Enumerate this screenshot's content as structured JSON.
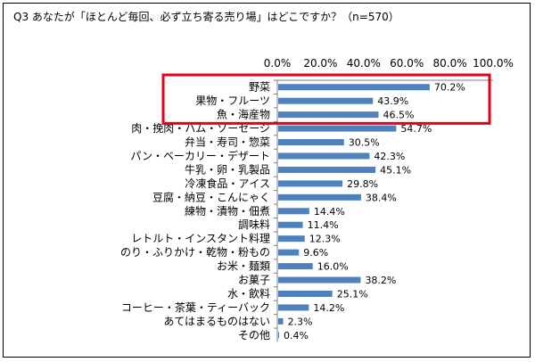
{
  "title": "Q3 あなたが「ほとんど毎回、必ず立ち寄る売り場」はどこですか？（n=570）",
  "chart_data": {
    "type": "bar",
    "orientation": "horizontal",
    "title": "Q3 あなたが「ほとんど毎回、必ず立ち寄る売り場」はどこですか？（n=570）",
    "xlim": [
      0,
      100
    ],
    "ticks": [
      "0.0%",
      "20.0%",
      "40.0%",
      "60.0%",
      "80.0%",
      "100.0%"
    ],
    "axis_position": "top",
    "grid": false,
    "bar_color": "#4f81bd",
    "highlight_color": "#e2001a",
    "highlighted_categories": [
      "野菜",
      "果物・フルーツ",
      "魚・海産物"
    ],
    "categories": [
      "野菜",
      "果物・フルーツ",
      "魚・海産物",
      "肉・挽肉・ハム・ソーセージ",
      "弁当・寿司・惣菜",
      "パン・ベーカリー・デザート",
      "牛乳・卵・乳製品",
      "冷凍食品・アイス",
      "豆腐・納豆・こんにゃく",
      "練物・漬物・佃煮",
      "調味料",
      "レトルト・インスタント料理",
      "のり・ふりかけ・乾物・粉もの",
      "お米・麺類",
      "お菓子",
      "水・飲料",
      "コーヒー・茶葉・ティーバック",
      "あてはまるものはない",
      "その他"
    ],
    "values": [
      70.2,
      43.9,
      46.5,
      54.7,
      30.5,
      42.3,
      45.1,
      29.8,
      38.4,
      14.4,
      11.4,
      12.3,
      9.6,
      16.0,
      38.2,
      25.1,
      14.2,
      2.3,
      0.4
    ],
    "labels": [
      "70.2%",
      "43.9%",
      "46.5%",
      "54.7%",
      "30.5%",
      "42.3%",
      "45.1%",
      "29.8%",
      "38.4%",
      "14.4%",
      "11.4%",
      "12.3%",
      "9.6%",
      "16.0%",
      "38.2%",
      "25.1%",
      "14.2%",
      "2.3%",
      "0.4%"
    ]
  }
}
